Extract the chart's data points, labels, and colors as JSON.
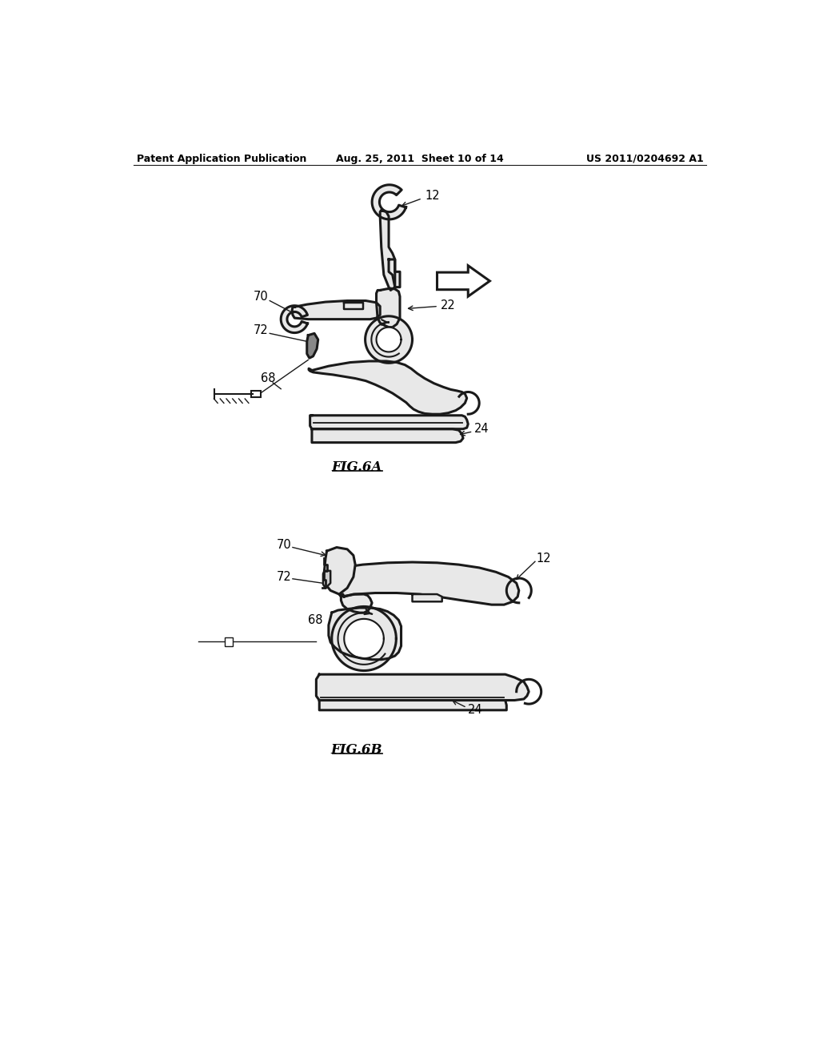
{
  "bg_color": "#ffffff",
  "header_left": "Patent Application Publication",
  "header_center": "Aug. 25, 2011  Sheet 10 of 14",
  "header_right": "US 2011/0204692 A1",
  "fig6a_label": "FIG.6A",
  "fig6b_label": "FIG.6B",
  "line_color": "#1a1a1a",
  "fill_light": "#e8e8e8",
  "fill_med": "#d0d0d0",
  "fill_dark": "#b0b0b0",
  "text_color": "#000000",
  "header_fontsize": 9,
  "label_fontsize": 10.5
}
